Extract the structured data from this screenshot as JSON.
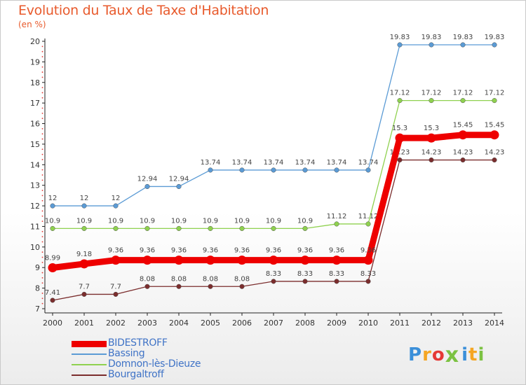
{
  "title": "Evolution du Taux de Taxe d'Habitation",
  "unit_label": "(en %)",
  "chart_data": {
    "type": "line",
    "x": [
      "2000",
      "2001",
      "2002",
      "2003",
      "2004",
      "2005",
      "2006",
      "2007",
      "2008",
      "2009",
      "2010",
      "2011",
      "2012",
      "2013",
      "2014"
    ],
    "ylim": [
      7,
      20
    ],
    "yticks": [
      7,
      8,
      9,
      10,
      11,
      12,
      13,
      14,
      15,
      16,
      17,
      18,
      19,
      20
    ],
    "grid": false,
    "legend_position": "bottom-left",
    "series": [
      {
        "name": "Bassing",
        "color": "#5b9bd5",
        "values": [
          12,
          12,
          12,
          12.94,
          12.94,
          13.74,
          13.74,
          13.74,
          13.74,
          13.74,
          13.74,
          19.83,
          19.83,
          19.83,
          19.83
        ],
        "labels": [
          "12",
          "12",
          "12",
          "12.94",
          "12.94",
          "13.74",
          "13.74",
          "13.74",
          "13.74",
          "13.74",
          "13.74",
          "19.83",
          "19.83",
          "19.83",
          "19.83"
        ]
      },
      {
        "name": "Domnon-lès-Dieuze",
        "color": "#8fd14f",
        "values": [
          10.9,
          10.9,
          10.9,
          10.9,
          10.9,
          10.9,
          10.9,
          10.9,
          10.9,
          11.12,
          11.12,
          17.12,
          17.12,
          17.12,
          17.12
        ],
        "labels": [
          "10.9",
          "10.9",
          "10.9",
          "10.9",
          "10.9",
          "10.9",
          "10.9",
          "10.9",
          "10.9",
          "11.12",
          "11.12",
          "17.12",
          "17.12",
          "17.12",
          "17.12"
        ]
      },
      {
        "name": "Bourgaltroff",
        "color": "#7b2d2d",
        "values": [
          7.41,
          7.7,
          7.7,
          8.08,
          8.08,
          8.08,
          8.08,
          8.33,
          8.33,
          8.33,
          8.33,
          14.23,
          14.23,
          14.23,
          14.23
        ],
        "labels": [
          "7.41",
          "7.7",
          "7.7",
          "8.08",
          "8.08",
          "8.08",
          "8.08",
          "8.33",
          "8.33",
          "8.33",
          "8.33",
          "14.23",
          "14.23",
          "14.23",
          "14.23"
        ]
      },
      {
        "name": "BIDESTROFF",
        "color": "#ee0000",
        "values": [
          8.99,
          9.18,
          9.36,
          9.36,
          9.36,
          9.36,
          9.36,
          9.36,
          9.36,
          9.36,
          9.36,
          15.3,
          15.3,
          15.45,
          15.45
        ],
        "labels": [
          "8.99",
          "9.18",
          "9.36",
          "9.36",
          "9.36",
          "9.36",
          "9.36",
          "9.36",
          "9.36",
          "9.36",
          "9.36",
          "15.3",
          "15.3",
          "15.45",
          "15.45"
        ]
      }
    ]
  },
  "legend": [
    {
      "name": "BIDESTROFF",
      "color": "#ee0000"
    },
    {
      "name": "Bassing",
      "color": "#5b9bd5"
    },
    {
      "name": "Domnon-lès-Dieuze",
      "color": "#8fd14f"
    },
    {
      "name": "Bourgaltroff",
      "color": "#7b2d2d"
    }
  ],
  "logo": {
    "text": "Prox iti",
    "letters": [
      {
        "ch": "P",
        "color": "#3b8fd9"
      },
      {
        "ch": "r",
        "color": "#f5a623"
      },
      {
        "ch": "o",
        "color": "#e53935"
      },
      {
        "ch": "x",
        "color": "#7cc242"
      },
      {
        "ch": "i",
        "color": "#3b8fd9"
      },
      {
        "ch": "t",
        "color": "#f5a623"
      },
      {
        "ch": "i",
        "color": "#7cc242"
      }
    ]
  }
}
